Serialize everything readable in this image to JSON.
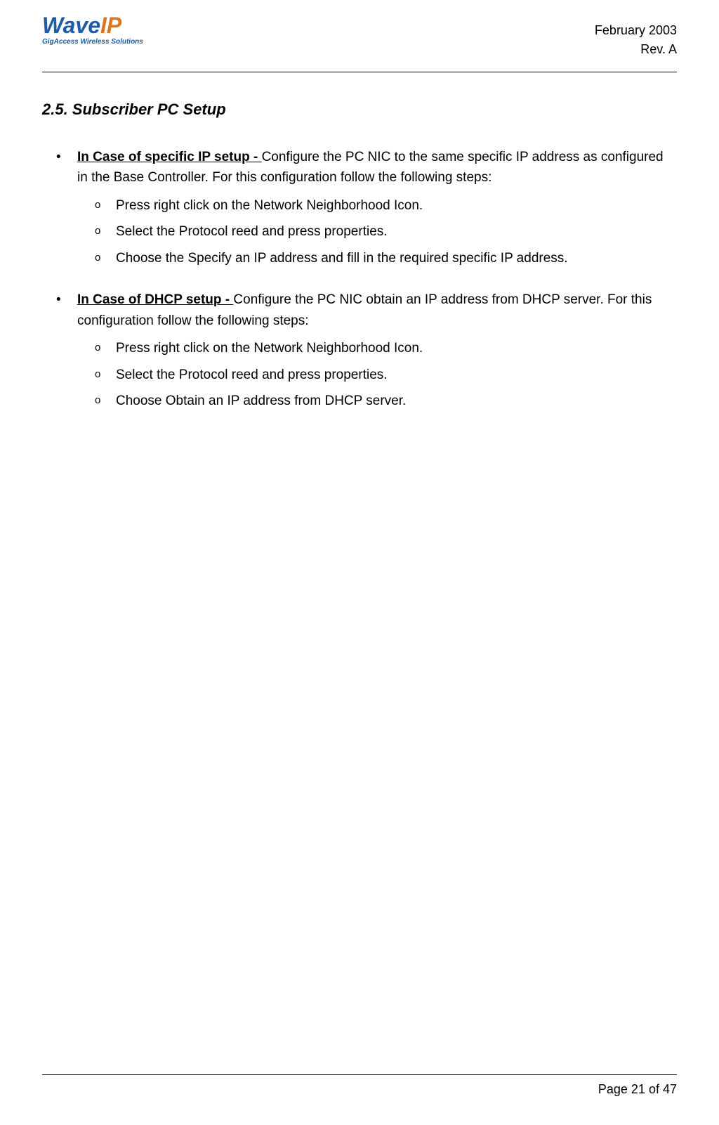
{
  "header": {
    "logo": {
      "main_part1": "Wave",
      "main_part2": "IP",
      "tagline": "GigAccess Wireless Solutions"
    },
    "date": "February 2003",
    "rev": "Rev. A"
  },
  "section_title": "2.5. Subscriber PC Setup",
  "bullets": [
    {
      "lead": "In Case of specific IP setup - ",
      "body": "Configure the PC NIC to the same specific IP address as configured in the Base Controller. For this configuration follow the following steps:",
      "subs": [
        "Press right click on the Network Neighborhood Icon.",
        "Select the Protocol reed and press properties.",
        "Choose the Specify an IP address and fill in the required specific IP address."
      ]
    },
    {
      "lead": "In Case of DHCP setup - ",
      "body": "Configure the PC NIC obtain an IP address from DHCP server. For this configuration follow the following steps:",
      "subs": [
        "Press right click on the Network Neighborhood Icon.",
        "Select the Protocol reed and press properties.",
        "Choose Obtain an IP address from DHCP server."
      ]
    }
  ],
  "footer": {
    "page_label": "Page",
    "page_num": "21",
    "page_of": "of",
    "page_total": "47"
  }
}
